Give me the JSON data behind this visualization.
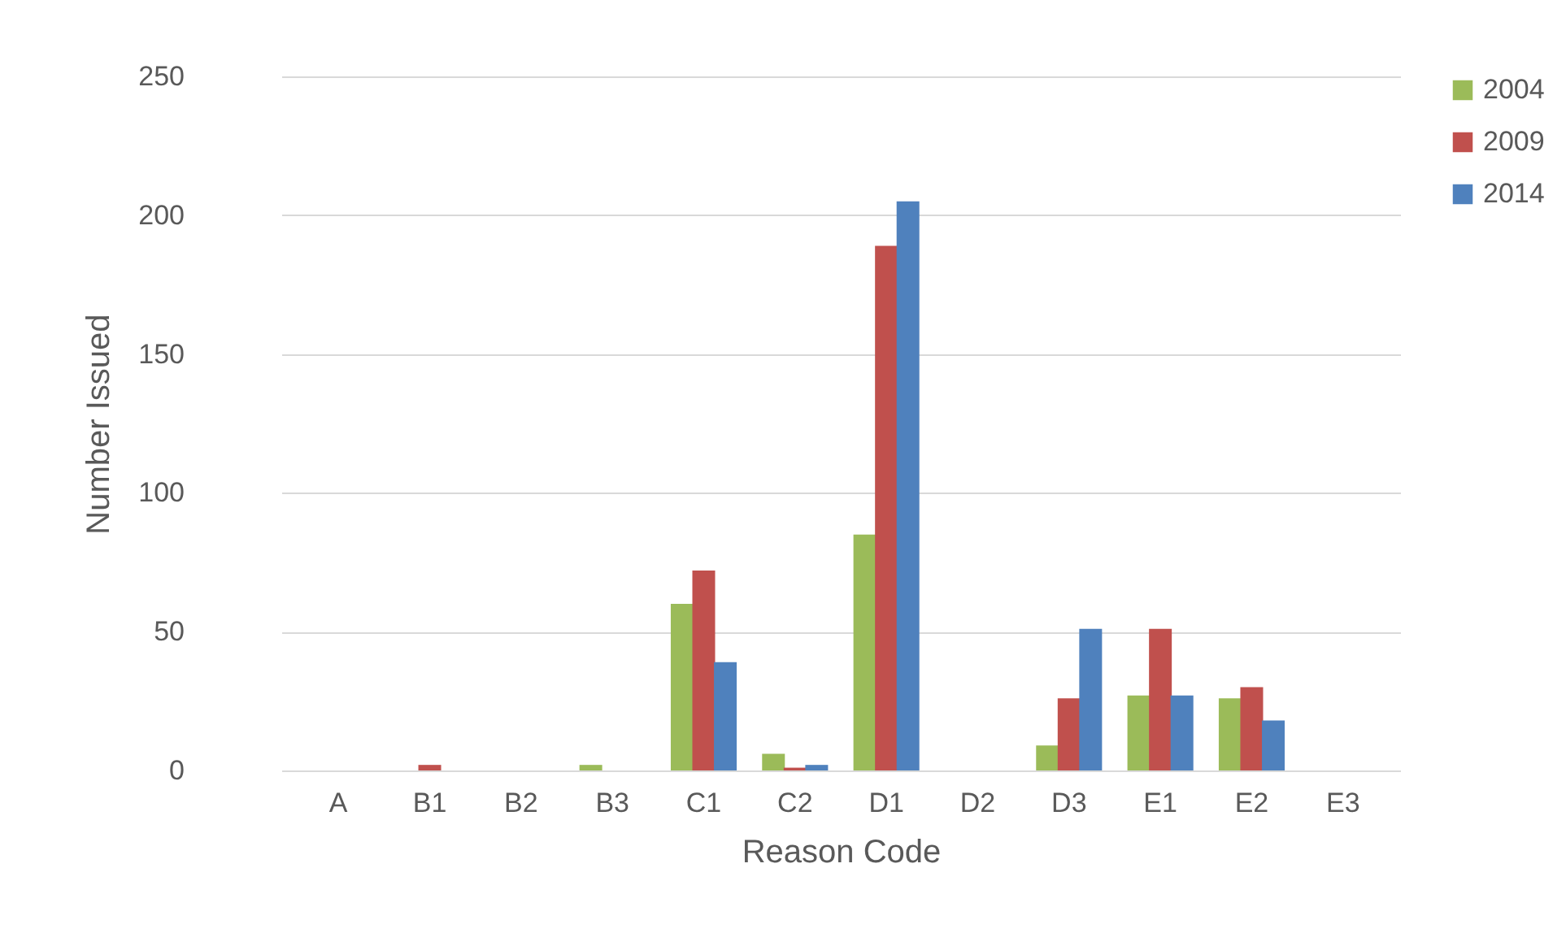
{
  "chart_data": {
    "type": "bar",
    "xlabel": "Reason Code",
    "ylabel": "Number Issued",
    "categories": [
      "A",
      "B1",
      "B2",
      "B3",
      "C1",
      "C2",
      "D1",
      "D2",
      "D3",
      "E1",
      "E2",
      "E3"
    ],
    "series": [
      {
        "name": "2004",
        "color": "#9bbb59",
        "values": [
          0,
          0,
          0,
          2,
          60,
          6,
          85,
          0,
          9,
          27,
          26,
          0
        ]
      },
      {
        "name": "2009",
        "color": "#c0504d",
        "values": [
          0,
          2,
          0,
          0,
          72,
          1,
          189,
          0,
          26,
          51,
          30,
          0
        ]
      },
      {
        "name": "2014",
        "color": "#4f81bd",
        "values": [
          0,
          0,
          0,
          0,
          39,
          2,
          205,
          0,
          51,
          27,
          18,
          0
        ]
      }
    ],
    "ylim": [
      0,
      250
    ],
    "yticks": [
      0,
      50,
      100,
      150,
      200,
      250
    ],
    "grid": "y",
    "legend": "right"
  }
}
